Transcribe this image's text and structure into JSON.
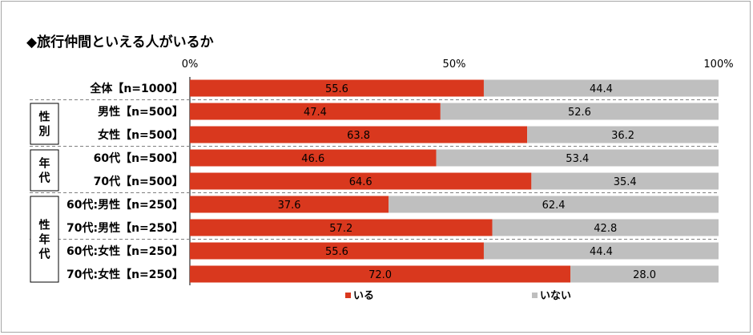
{
  "title": "◆旅行仲間といえる人がいるか",
  "chart_data": {
    "type": "bar",
    "stacked": true,
    "orientation": "horizontal",
    "xlim": [
      0,
      100
    ],
    "x_ticks": [
      "0%",
      "50%",
      "100%"
    ],
    "categories": [
      "全体【n=1000】",
      "男性【n=500】",
      "女性【n=500】",
      "60代【n=500】",
      "70代【n=500】",
      "60代:男性【n=250】",
      "70代:男性【n=250】",
      "60代:女性【n=250】",
      "70代:女性【n=250】"
    ],
    "groups": [
      {
        "label": "性別",
        "rows": [
          1,
          2
        ]
      },
      {
        "label": "年代",
        "rows": [
          3,
          4
        ]
      },
      {
        "label": "性年代",
        "rows": [
          5,
          6,
          7,
          8
        ]
      }
    ],
    "series": [
      {
        "name": "いる",
        "color": "#d9381e",
        "values": [
          55.6,
          47.4,
          63.8,
          46.6,
          64.6,
          37.6,
          57.2,
          55.6,
          72.0
        ]
      },
      {
        "name": "いない",
        "color": "#bfbfbf",
        "values": [
          44.4,
          52.6,
          36.2,
          53.4,
          35.4,
          62.4,
          42.8,
          44.4,
          28.0
        ]
      }
    ],
    "legend_position": "bottom"
  }
}
